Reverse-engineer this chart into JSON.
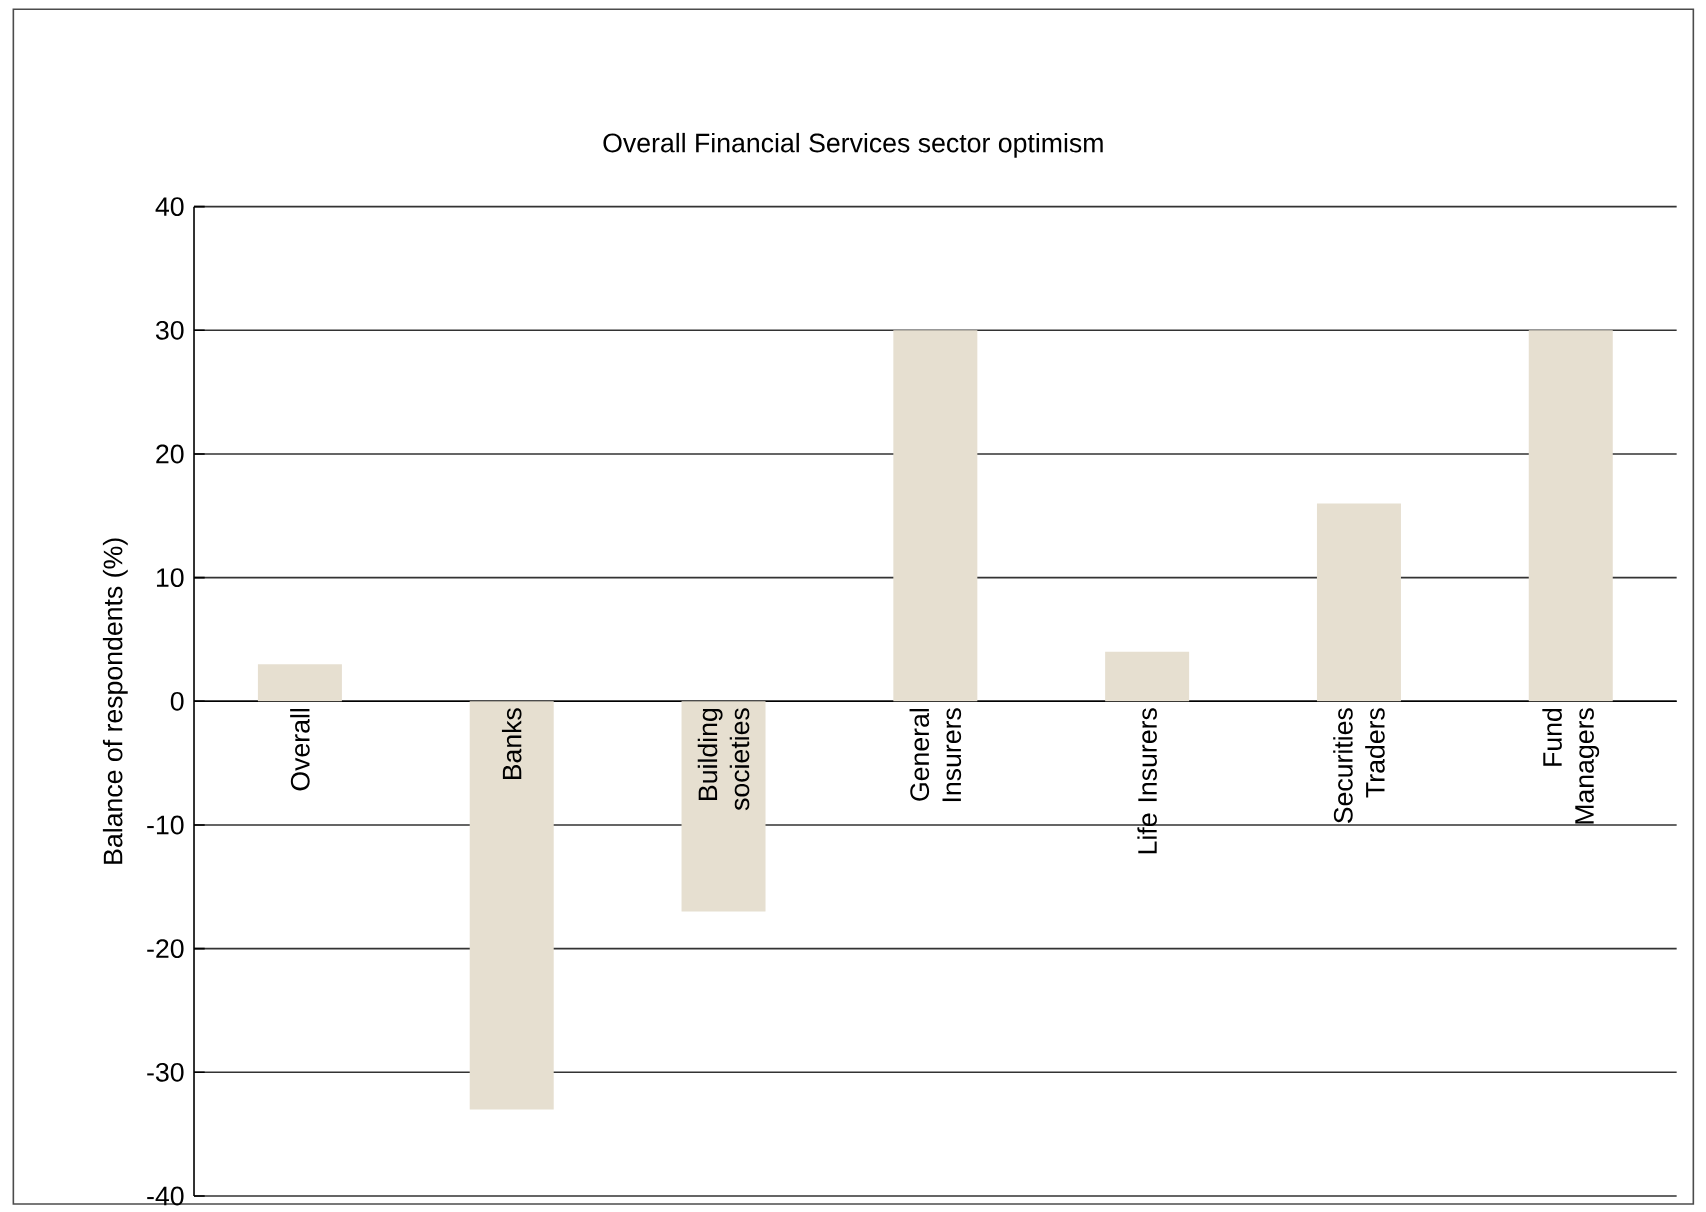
{
  "chart_data": {
    "type": "bar",
    "title": "Overall Financial Services sector optimism",
    "ylabel": "Balance of respondents (%)",
    "categories": [
      "Overall",
      "Banks",
      "Building societies",
      "General Insurers",
      "Life Insurers",
      "Securities Traders",
      "Fund Managers"
    ],
    "values": [
      3,
      -33,
      -17,
      30,
      4,
      16,
      30
    ],
    "color": "#e6dfd0",
    "ylim": [
      -40,
      40
    ],
    "yticks": [
      -40,
      -30,
      -20,
      -10,
      0,
      10,
      20,
      30,
      40
    ],
    "grid": "y"
  }
}
